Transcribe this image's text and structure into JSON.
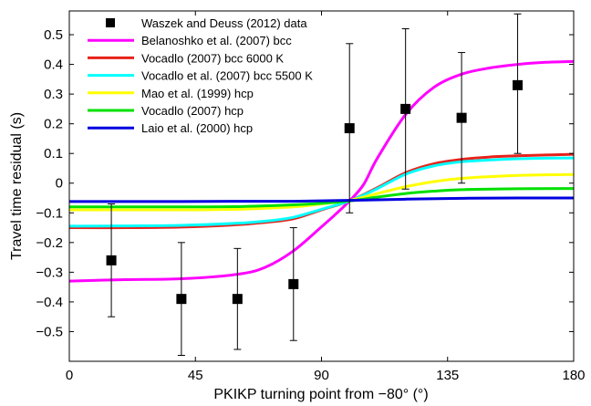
{
  "chart_data": {
    "type": "line",
    "xlabel": "PKIKP turning point from −80° (°)",
    "ylabel": "Travel time residual (s)",
    "xlim": [
      0,
      180
    ],
    "ylim": [
      -0.6,
      0.58
    ],
    "xticks": [
      0,
      45,
      90,
      135,
      180
    ],
    "xtick_labels": [
      "0",
      "45",
      "90",
      "135",
      "180"
    ],
    "yticks": [
      -0.5,
      -0.4,
      -0.3,
      -0.2,
      -0.1,
      0,
      0.1,
      0.2,
      0.3,
      0.4,
      0.5
    ],
    "ytick_labels": [
      "−0.5",
      "−0.4",
      "−0.3",
      "−0.2",
      "−0.1",
      "0",
      "0.1",
      "0.2",
      "0.3",
      "0.4",
      "0.5"
    ],
    "grid": false,
    "legend_position": "top-left",
    "data_series": {
      "name": "Waszek and Deuss (2012) data",
      "x": [
        15,
        40,
        60,
        80,
        100,
        120,
        140,
        160
      ],
      "y": [
        -0.26,
        -0.39,
        -0.39,
        -0.34,
        0.185,
        0.25,
        0.22,
        0.33
      ],
      "err_lower": [
        0.19,
        0.19,
        0.17,
        0.19,
        0.285,
        0.27,
        0.22,
        0.23
      ],
      "err_upper": [
        0.19,
        0.19,
        0.17,
        0.19,
        0.285,
        0.27,
        0.22,
        0.24
      ],
      "marker": "square",
      "color": "#000000"
    },
    "series": [
      {
        "name": "Belanoshko et al. (2007) bcc",
        "color": "#ff00ff",
        "x": [
          0,
          20,
          40,
          60,
          70,
          80,
          90,
          95,
          100,
          105,
          110,
          120,
          130,
          140,
          150,
          160,
          170,
          180
        ],
        "y": [
          -0.33,
          -0.325,
          -0.322,
          -0.307,
          -0.283,
          -0.228,
          -0.147,
          -0.105,
          -0.06,
          -0.005,
          0.085,
          0.231,
          0.322,
          0.367,
          0.388,
          0.4,
          0.407,
          0.41
        ]
      },
      {
        "name": "Vocadlo (2007) bcc 6000 K",
        "color": "#e8221b",
        "x": [
          0,
          20,
          40,
          60,
          70,
          80,
          90,
          100,
          110,
          120,
          130,
          140,
          150,
          160,
          170,
          180
        ],
        "y": [
          -0.15,
          -0.15,
          -0.148,
          -0.14,
          -0.132,
          -0.12,
          -0.09,
          -0.06,
          -0.015,
          0.035,
          0.065,
          0.08,
          0.088,
          0.092,
          0.095,
          0.097
        ]
      },
      {
        "name": "Vocadlo et al. (2007) bcc 5500 K",
        "color": "#00ffff",
        "x": [
          0,
          20,
          40,
          60,
          70,
          80,
          90,
          100,
          110,
          120,
          130,
          140,
          150,
          160,
          170,
          180
        ],
        "y": [
          -0.145,
          -0.144,
          -0.142,
          -0.135,
          -0.128,
          -0.115,
          -0.088,
          -0.06,
          -0.018,
          0.03,
          0.058,
          0.072,
          0.078,
          0.082,
          0.084,
          0.085
        ]
      },
      {
        "name": "Mao et al. (1999) hcp",
        "color": "#ffff00",
        "x": [
          0,
          20,
          40,
          60,
          80,
          90,
          100,
          110,
          120,
          130,
          140,
          150,
          160,
          170,
          180
        ],
        "y": [
          -0.09,
          -0.09,
          -0.09,
          -0.088,
          -0.08,
          -0.07,
          -0.058,
          -0.035,
          -0.012,
          0.005,
          0.016,
          0.022,
          0.026,
          0.028,
          0.029
        ]
      },
      {
        "name": "Vocadlo (2007) hcp",
        "color": "#00e000",
        "x": [
          0,
          20,
          40,
          60,
          80,
          90,
          100,
          110,
          120,
          130,
          140,
          160,
          180
        ],
        "y": [
          -0.08,
          -0.08,
          -0.08,
          -0.079,
          -0.073,
          -0.068,
          -0.06,
          -0.047,
          -0.035,
          -0.027,
          -0.022,
          -0.019,
          -0.018
        ]
      },
      {
        "name": "Laio et al. (2000) hcp",
        "color": "#0000e0",
        "x": [
          0,
          20,
          40,
          60,
          80,
          100,
          120,
          140,
          160,
          180
        ],
        "y": [
          -0.062,
          -0.062,
          -0.062,
          -0.061,
          -0.061,
          -0.058,
          -0.054,
          -0.051,
          -0.05,
          -0.05
        ]
      }
    ]
  }
}
